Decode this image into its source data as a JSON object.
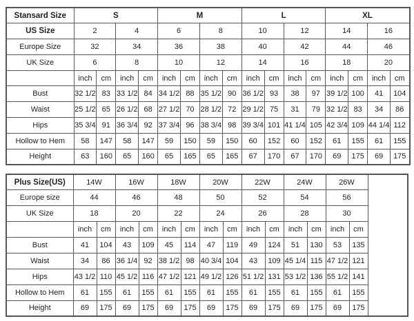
{
  "standard": {
    "header_label": "Stansard Size",
    "groups": [
      "S",
      "M",
      "L",
      "XL"
    ],
    "us_label": "US Size",
    "us": [
      "2",
      "4",
      "6",
      "8",
      "10",
      "12",
      "14",
      "16"
    ],
    "europe_label": "Europe Size",
    "europe": [
      "32",
      "34",
      "36",
      "38",
      "40",
      "42",
      "44",
      "46"
    ],
    "uk_label": "UK Size",
    "uk": [
      "6",
      "8",
      "10",
      "12",
      "14",
      "16",
      "18",
      "20"
    ],
    "units": [
      "inch",
      "cm"
    ],
    "rows": [
      {
        "label": "Bust",
        "values": [
          "32 1/2",
          "83",
          "33 1/2",
          "84",
          "34 1/2",
          "88",
          "35 1/2",
          "90",
          "36 1/2",
          "93",
          "38",
          "97",
          "39 1/2",
          "100",
          "41",
          "104"
        ]
      },
      {
        "label": "Waist",
        "values": [
          "25 1/2",
          "65",
          "26 1/2",
          "68",
          "27 1/2",
          "70",
          "28 1/2",
          "72",
          "29 1/2",
          "75",
          "31",
          "79",
          "32 1/2",
          "83",
          "34",
          "86"
        ]
      },
      {
        "label": "Hips",
        "values": [
          "35 3/4",
          "91",
          "36 3/4",
          "92",
          "37 3/4",
          "96",
          "38 3/4",
          "98",
          "39 3/4",
          "101",
          "41 1/4",
          "105",
          "42 3/4",
          "109",
          "44 1/4",
          "112"
        ]
      },
      {
        "label": "Hollow to Hem",
        "values": [
          "58",
          "147",
          "58",
          "147",
          "59",
          "150",
          "59",
          "150",
          "60",
          "152",
          "60",
          "152",
          "61",
          "155",
          "61",
          "155"
        ]
      },
      {
        "label": "Height",
        "values": [
          "63",
          "160",
          "65",
          "160",
          "65",
          "165",
          "65",
          "165",
          "67",
          "170",
          "67",
          "170",
          "69",
          "175",
          "69",
          "175"
        ]
      }
    ]
  },
  "plus": {
    "header_label": "Plus Size(US)",
    "us": [
      "14W",
      "16W",
      "18W",
      "20W",
      "22W",
      "24W",
      "26W"
    ],
    "europe_label": "Europe size",
    "europe": [
      "44",
      "46",
      "48",
      "50",
      "52",
      "54",
      "56"
    ],
    "uk_label": "UK Size",
    "uk": [
      "18",
      "20",
      "22",
      "24",
      "26",
      "28",
      "30"
    ],
    "units": [
      "inch",
      "cm"
    ],
    "rows": [
      {
        "label": "Bust",
        "values": [
          "41",
          "104",
          "43",
          "109",
          "45",
          "114",
          "47",
          "119",
          "49",
          "124",
          "51",
          "130",
          "53",
          "135"
        ]
      },
      {
        "label": "Waist",
        "values": [
          "34",
          "86",
          "36 1/4",
          "92",
          "38 1/2",
          "98",
          "40 3/4",
          "104",
          "43",
          "109",
          "45 1/4",
          "115",
          "47 1/2",
          "121"
        ]
      },
      {
        "label": "Hips",
        "values": [
          "43 1/2",
          "110",
          "45 1/2",
          "116",
          "47 1/2",
          "121",
          "49 1/2",
          "126",
          "51 1/2",
          "131",
          "53 1/2",
          "136",
          "55 1/2",
          "141"
        ]
      },
      {
        "label": "Hollow to Hem",
        "values": [
          "61",
          "155",
          "61",
          "155",
          "61",
          "155",
          "61",
          "155",
          "61",
          "155",
          "61",
          "155",
          "61",
          "155"
        ]
      },
      {
        "label": "Height",
        "values": [
          "69",
          "175",
          "69",
          "175",
          "69",
          "175",
          "69",
          "175",
          "69",
          "175",
          "69",
          "175",
          "69",
          "175"
        ]
      }
    ]
  }
}
